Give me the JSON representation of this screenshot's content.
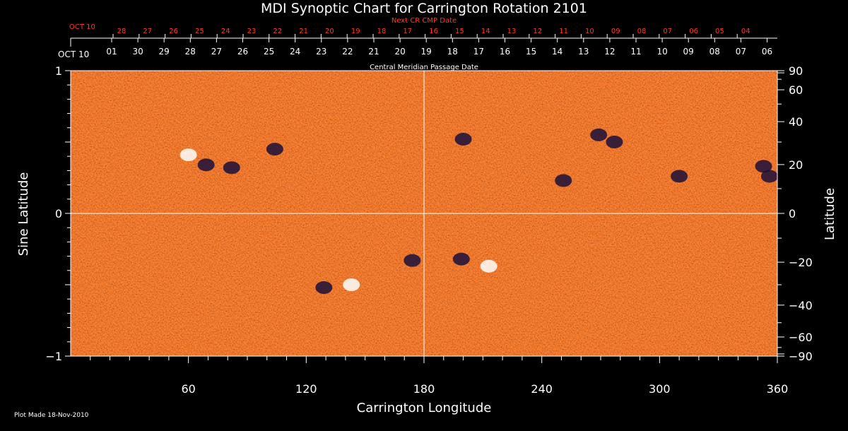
{
  "chart_data": {
    "type": "heatmap",
    "title": "MDI Synoptic Chart for Carrington Rotation 2101",
    "xlabel": "Carrington Longitude",
    "ylabel_left": "Sine Latitude",
    "ylabel_right": "Latitude",
    "xlim": [
      0,
      360
    ],
    "ylim": [
      -1,
      1
    ],
    "x_ticks": [
      60,
      120,
      180,
      240,
      300,
      360
    ],
    "y_ticks_left": [
      {
        "value": 1,
        "label": "1"
      },
      {
        "value": 0,
        "label": "0"
      },
      {
        "value": -1,
        "label": "−1"
      }
    ],
    "y_ticks_right_deg": [
      {
        "deg": 90,
        "label": "90"
      },
      {
        "deg": 60,
        "label": "60"
      },
      {
        "deg": 40,
        "label": "40"
      },
      {
        "deg": 20,
        "label": "20"
      },
      {
        "deg": 0,
        "label": "0"
      },
      {
        "deg": -20,
        "label": "−20"
      },
      {
        "deg": -40,
        "label": "−40"
      },
      {
        "deg": -60,
        "label": "−60"
      },
      {
        "deg": -90,
        "label": "−90"
      }
    ],
    "cmp_axis": {
      "label": "Central Meridian Passage Date",
      "start_label": "OCT 10",
      "dates": [
        "01",
        "30",
        "29",
        "28",
        "27",
        "26",
        "25",
        "24",
        "23",
        "22",
        "21",
        "20",
        "19",
        "18",
        "17",
        "16",
        "15",
        "14",
        "13",
        "12",
        "11",
        "10",
        "09",
        "08",
        "07",
        "06"
      ]
    },
    "next_cmp_axis": {
      "label": "Next CR CMP Date",
      "start_label": "OCT 10",
      "dates": [
        "28",
        "27",
        "26",
        "25",
        "24",
        "23",
        "22",
        "21",
        "20",
        "19",
        "18",
        "17",
        "16",
        "15",
        "14",
        "13",
        "12",
        "11",
        "10",
        "09",
        "08",
        "07",
        "06",
        "05",
        "04"
      ]
    },
    "gridlines": {
      "x": [
        180
      ],
      "y": [
        0
      ]
    },
    "active_regions": [
      {
        "lon": 60,
        "sinlat": 0.41,
        "polarity": "positive"
      },
      {
        "lon": 69,
        "sinlat": 0.34,
        "polarity": "negative"
      },
      {
        "lon": 82,
        "sinlat": 0.32,
        "polarity": "negative"
      },
      {
        "lon": 104,
        "sinlat": 0.45,
        "polarity": "negative"
      },
      {
        "lon": 129,
        "sinlat": -0.52,
        "polarity": "negative"
      },
      {
        "lon": 143,
        "sinlat": -0.5,
        "polarity": "positive"
      },
      {
        "lon": 174,
        "sinlat": -0.33,
        "polarity": "negative"
      },
      {
        "lon": 199,
        "sinlat": -0.32,
        "polarity": "negative"
      },
      {
        "lon": 213,
        "sinlat": -0.37,
        "polarity": "positive"
      },
      {
        "lon": 200,
        "sinlat": 0.52,
        "polarity": "negative"
      },
      {
        "lon": 269,
        "sinlat": 0.55,
        "polarity": "negative"
      },
      {
        "lon": 277,
        "sinlat": 0.5,
        "polarity": "negative"
      },
      {
        "lon": 251,
        "sinlat": 0.23,
        "polarity": "negative"
      },
      {
        "lon": 353,
        "sinlat": 0.33,
        "polarity": "negative"
      },
      {
        "lon": 356,
        "sinlat": 0.26,
        "polarity": "negative"
      },
      {
        "lon": 310,
        "sinlat": 0.26,
        "polarity": "negative"
      }
    ],
    "colors": {
      "background": "#ff5a0f",
      "positive": "#ffffff",
      "negative": "#1a0f3a",
      "grid": "#ffffff",
      "next_axis": "#ff3a1a"
    }
  },
  "footer": {
    "plot_made": "Plot Made 18-Nov-2010"
  }
}
